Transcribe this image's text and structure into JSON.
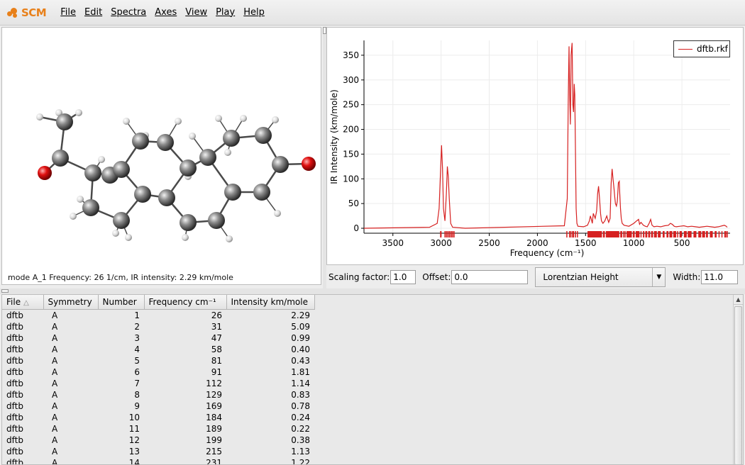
{
  "app": {
    "logo_text": "SCM",
    "brand_color": "#e8801a"
  },
  "menu": [
    "File",
    "Edit",
    "Spectra",
    "Axes",
    "View",
    "Play",
    "Help"
  ],
  "molecule": {
    "status": "mode A_1 Frequency:   26 1/cm, IR intensity:   2.29 km/mole"
  },
  "spectrum": {
    "legend": "dftb.rkf",
    "line_color": "#d62020"
  },
  "chart_data": {
    "type": "line",
    "xlabel": "Frequency (cm⁻¹)",
    "ylabel": "IR Intensity (km/mole)",
    "xlim": [
      3800,
      0
    ],
    "ylim": [
      -10,
      380
    ],
    "x_ticks": [
      3500,
      3000,
      2500,
      2000,
      1500,
      1000,
      500
    ],
    "y_ticks": [
      0,
      50,
      100,
      150,
      200,
      250,
      300,
      350
    ],
    "grid": true,
    "legend_position": "top-right",
    "series": [
      {
        "name": "dftb.rkf",
        "x": [
          3800,
          3120,
          3040,
          3020,
          3005,
          2995,
          2985,
          2975,
          2960,
          2945,
          2935,
          2925,
          2915,
          2900,
          2880,
          2750,
          1720,
          1690,
          1680,
          1672,
          1665,
          1658,
          1650,
          1640,
          1632,
          1625,
          1618,
          1612,
          1605,
          1598,
          1590,
          1580,
          1520,
          1480,
          1460,
          1450,
          1440,
          1430,
          1420,
          1400,
          1385,
          1375,
          1365,
          1355,
          1345,
          1335,
          1320,
          1300,
          1290,
          1280,
          1270,
          1260,
          1245,
          1235,
          1225,
          1215,
          1205,
          1198,
          1190,
          1180,
          1170,
          1160,
          1150,
          1145,
          1138,
          1130,
          1120,
          1100,
          1050,
          1000,
          970,
          950,
          940,
          925,
          900,
          880,
          860,
          840,
          825,
          810,
          790,
          760,
          720,
          680,
          640,
          620,
          600,
          580,
          560,
          520,
          480,
          440,
          400,
          360,
          320,
          280,
          240,
          200,
          160,
          120,
          80,
          60,
          40,
          30
        ],
        "y": [
          0,
          2,
          10,
          40,
          120,
          168,
          120,
          40,
          15,
          70,
          125,
          105,
          60,
          10,
          2,
          0,
          5,
          60,
          260,
          368,
          270,
          210,
          350,
          375,
          250,
          235,
          292,
          270,
          150,
          40,
          10,
          4,
          3,
          6,
          15,
          25,
          18,
          10,
          30,
          20,
          35,
          70,
          85,
          60,
          30,
          15,
          10,
          15,
          20,
          25,
          18,
          12,
          20,
          90,
          120,
          100,
          80,
          65,
          50,
          45,
          55,
          92,
          95,
          70,
          40,
          20,
          10,
          6,
          4,
          10,
          15,
          18,
          8,
          12,
          6,
          4,
          3,
          10,
          18,
          6,
          3,
          4,
          3,
          5,
          6,
          10,
          8,
          4,
          3,
          4,
          5,
          3,
          4,
          3,
          2,
          3,
          4,
          3,
          2,
          3,
          5,
          6,
          4,
          2
        ]
      }
    ],
    "stick_spectrum": [
      [
        3010,
        2995
      ],
      [
        2965,
        2960
      ],
      [
        2950,
        2940
      ],
      [
        2935,
        2920
      ],
      [
        2915,
        2900
      ],
      [
        2895,
        2880
      ],
      [
        2875,
        2860
      ],
      [
        1700,
        1690
      ],
      [
        1672,
        1668
      ],
      [
        1658,
        1650
      ],
      [
        1640,
        1620
      ],
      [
        1612,
        1600
      ],
      [
        1590,
        1585
      ],
      [
        1480,
        1330
      ],
      [
        1320,
        1300
      ],
      [
        1290,
        1150
      ],
      [
        1140,
        1120
      ],
      [
        1110,
        1100
      ],
      [
        1095,
        1085
      ],
      [
        1075,
        1020
      ],
      [
        1010,
        990
      ],
      [
        980,
        940
      ],
      [
        930,
        920
      ],
      [
        905,
        890
      ],
      [
        880,
        860
      ],
      [
        850,
        830
      ],
      [
        820,
        800
      ],
      [
        790,
        760
      ],
      [
        750,
        720
      ],
      [
        700,
        680
      ],
      [
        660,
        640
      ],
      [
        630,
        600
      ],
      [
        590,
        560
      ],
      [
        550,
        540
      ],
      [
        525,
        500
      ],
      [
        480,
        450
      ],
      [
        440,
        400
      ],
      [
        380,
        350
      ],
      [
        330,
        300
      ],
      [
        290,
        260
      ],
      [
        250,
        230
      ],
      [
        210,
        180
      ],
      [
        160,
        140
      ],
      [
        120,
        110
      ],
      [
        90,
        80
      ],
      [
        60,
        55
      ],
      [
        50,
        45
      ],
      [
        35,
        25
      ]
    ]
  },
  "controls": {
    "scaling_label": "Scaling factor:",
    "scaling_value": "1.0",
    "offset_label": "Offset:",
    "offset_value": "0.0",
    "lineshape": "Lorentzian Height",
    "width_label": "Width:",
    "width_value": "11.0"
  },
  "table": {
    "columns": [
      "File",
      "Symmetry",
      "Number",
      "Frequency cm⁻¹",
      "Intensity km/mole"
    ],
    "rows": [
      [
        "dftb",
        "A",
        "1",
        "26",
        "2.29"
      ],
      [
        "dftb",
        "A",
        "2",
        "31",
        "5.09"
      ],
      [
        "dftb",
        "A",
        "3",
        "47",
        "0.99"
      ],
      [
        "dftb",
        "A",
        "4",
        "58",
        "0.40"
      ],
      [
        "dftb",
        "A",
        "5",
        "81",
        "0.43"
      ],
      [
        "dftb",
        "A",
        "6",
        "91",
        "1.81"
      ],
      [
        "dftb",
        "A",
        "7",
        "112",
        "1.14"
      ],
      [
        "dftb",
        "A",
        "8",
        "129",
        "0.83"
      ],
      [
        "dftb",
        "A",
        "9",
        "169",
        "0.78"
      ],
      [
        "dftb",
        "A",
        "10",
        "184",
        "0.24"
      ],
      [
        "dftb",
        "A",
        "11",
        "189",
        "0.22"
      ],
      [
        "dftb",
        "A",
        "12",
        "199",
        "0.38"
      ],
      [
        "dftb",
        "A",
        "13",
        "215",
        "1.13"
      ],
      [
        "dftb",
        "A",
        "14",
        "231",
        "1.22"
      ]
    ]
  }
}
